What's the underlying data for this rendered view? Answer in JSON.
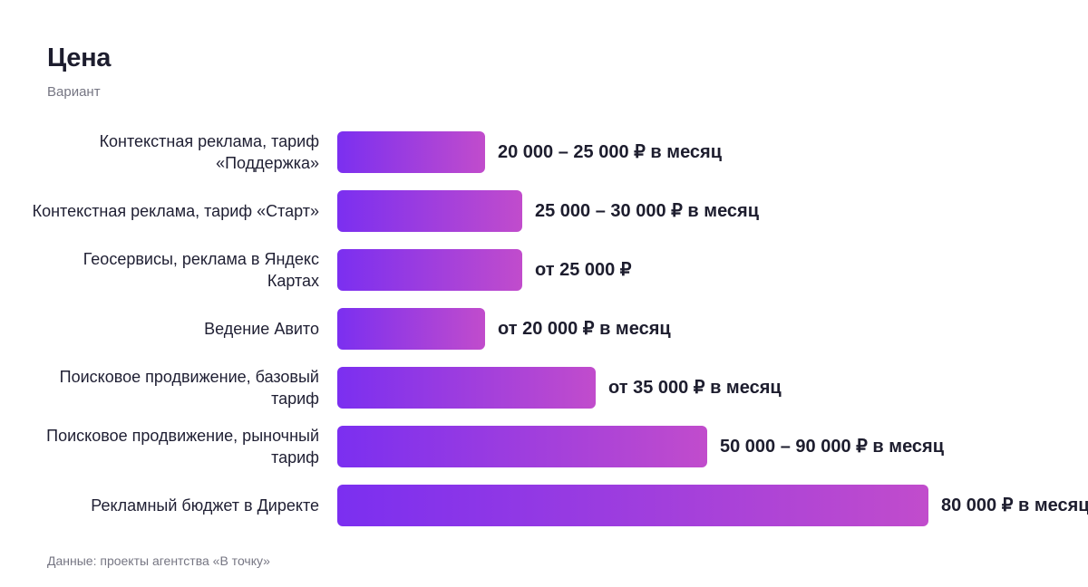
{
  "chart_data": {
    "type": "bar",
    "orientation": "horizontal",
    "title": "Цена",
    "subtitle": "Вариант",
    "source": "Данные: проекты агентства «В точку»",
    "grid": false,
    "legend": "none",
    "unit": "₽",
    "xlim": [
      0,
      80000
    ],
    "colors": {
      "bar_start": "#7b2ff0",
      "bar_end": "#c14ccc",
      "text": "#1d1d2e",
      "muted": "#767683"
    },
    "categories": [
      "Контекстная реклама, тариф «Поддержка»",
      "Контекстная реклама, тариф «Старт»",
      "Геосервисы, реклама в Яндекс Картах",
      "Ведение Авито",
      "Поисковое продвижение, базовый тариф",
      "Поисковое продвижение, рыночный тариф",
      "Рекламный бюджет в Директе"
    ],
    "values": [
      20000,
      25000,
      25000,
      20000,
      35000,
      50000,
      80000
    ],
    "labels": [
      "20 000 – 25 000 ₽ в месяц",
      "25 000 – 30 000 ₽ в месяц",
      "от 25 000 ₽",
      "от 20 000 ₽ в месяц",
      "от 35 000 ₽ в месяц",
      "50 000 – 90 000 ₽ в месяц",
      "80 000 ₽ в месяц"
    ]
  }
}
